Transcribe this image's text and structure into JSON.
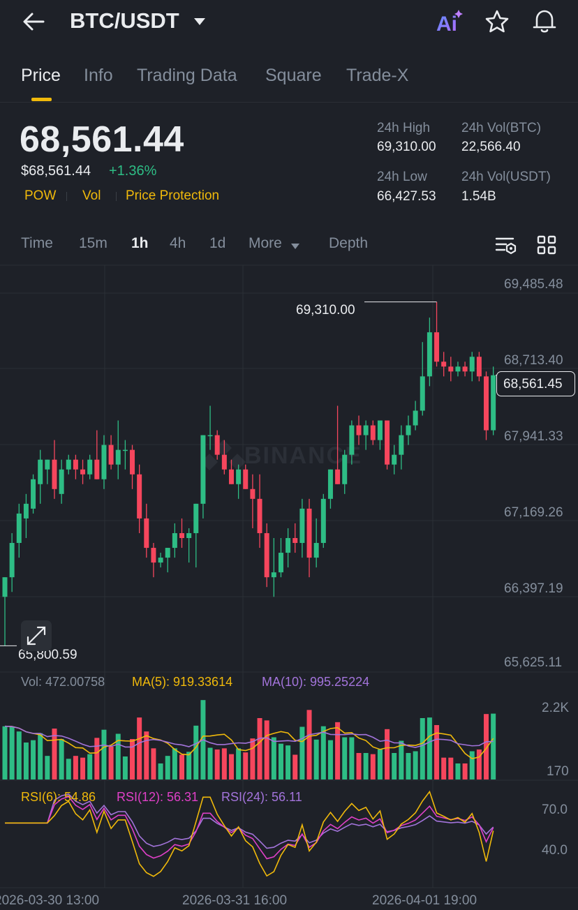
{
  "header": {
    "pair": "BTC/USDT",
    "icons": [
      "back-arrow-icon",
      "caret-down-icon",
      "ai-icon",
      "star-icon",
      "bell-icon"
    ]
  },
  "tabs": [
    "Price",
    "Info",
    "Trading Data",
    "Square",
    "Trade-X"
  ],
  "ticker": {
    "last_price": "68,561.44",
    "usd_price": "$68,561.44",
    "change": "+1.36%",
    "tags": [
      "POW",
      "Vol",
      "Price Protection"
    ],
    "high_label": "24h High",
    "high_value": "69,310.00",
    "low_label": "24h Low",
    "low_value": "66,427.53",
    "vol_btc_label": "24h Vol(BTC)",
    "vol_btc_value": "22,566.40",
    "vol_usdt_label": "24h Vol(USDT)",
    "vol_usdt_value": "1.54B"
  },
  "timeframes": [
    "Time",
    "15m",
    "1h",
    "4h",
    "1d",
    "More",
    "Depth"
  ],
  "active_timeframe": "1h",
  "chart": {
    "price_axis": [
      "69,485.48",
      "68,713.40",
      "67,941.33",
      "67,169.26",
      "66,397.19",
      "65,625.11"
    ],
    "high_marker": "69,310.00",
    "low_marker": "65,800.59",
    "current_price_tag": "68,561.45",
    "watermark": "BINANCE",
    "volume": {
      "vol": "Vol: 472.00758",
      "ma5": "MA(5): 919.33614",
      "ma10": "MA(10): 995.25224",
      "axis_top": "2.2K",
      "axis_bottom": "170"
    },
    "rsi": {
      "rsi6": "RSI(6): 54.86",
      "rsi12": "RSI(12): 56.31",
      "rsi24": "RSI(24): 56.11",
      "axis_top": "70.0",
      "axis_bottom": "40.0"
    },
    "time_axis": [
      "2026-03-30 13:00",
      "2026-03-31 16:00",
      "2026-04-01 19:00"
    ]
  },
  "colors": {
    "up": "#2ebd85",
    "down": "#f6465d",
    "accent": "#f0b90b",
    "ma5": "#f0b90b",
    "ma10": "#a374db",
    "rsi12": "#e040c8"
  },
  "chart_data": {
    "type": "candlestick",
    "ylim": [
      65625.11,
      69485.48
    ],
    "candles": [
      {
        "o": 66300,
        "h": 66500,
        "l": 65800.59,
        "c": 66500
      },
      {
        "o": 66500,
        "h": 66950,
        "l": 66350,
        "c": 66850
      },
      {
        "o": 66850,
        "h": 67250,
        "l": 66700,
        "c": 67150
      },
      {
        "o": 67100,
        "h": 67350,
        "l": 66900,
        "c": 67250
      },
      {
        "o": 67200,
        "h": 67550,
        "l": 67150,
        "c": 67500
      },
      {
        "o": 67450,
        "h": 67800,
        "l": 67250,
        "c": 67700
      },
      {
        "o": 67600,
        "h": 67700,
        "l": 67450,
        "c": 67700
      },
      {
        "o": 67700,
        "h": 67900,
        "l": 67300,
        "c": 67400
      },
      {
        "o": 67350,
        "h": 67700,
        "l": 67250,
        "c": 67600
      },
      {
        "o": 67600,
        "h": 67750,
        "l": 67550,
        "c": 67700
      },
      {
        "o": 67700,
        "h": 67750,
        "l": 67500,
        "c": 67600
      },
      {
        "o": 67600,
        "h": 67700,
        "l": 67450,
        "c": 67550
      },
      {
        "o": 67550,
        "h": 67750,
        "l": 67500,
        "c": 67700
      },
      {
        "o": 67700,
        "h": 68000,
        "l": 67500,
        "c": 67500
      },
      {
        "o": 67500,
        "h": 67950,
        "l": 67400,
        "c": 67850
      },
      {
        "o": 67850,
        "h": 67950,
        "l": 67600,
        "c": 67650
      },
      {
        "o": 67650,
        "h": 68100,
        "l": 67500,
        "c": 67800
      },
      {
        "o": 67800,
        "h": 67900,
        "l": 67600,
        "c": 67800
      },
      {
        "o": 67800,
        "h": 67850,
        "l": 67400,
        "c": 67550
      },
      {
        "o": 67550,
        "h": 67650,
        "l": 66950,
        "c": 67100
      },
      {
        "o": 67100,
        "h": 67250,
        "l": 66700,
        "c": 66800
      },
      {
        "o": 66800,
        "h": 66850,
        "l": 66500,
        "c": 66650
      },
      {
        "o": 66650,
        "h": 66750,
        "l": 66600,
        "c": 66700
      },
      {
        "o": 66700,
        "h": 66800,
        "l": 66550,
        "c": 66800
      },
      {
        "o": 66800,
        "h": 67050,
        "l": 66700,
        "c": 66950
      },
      {
        "o": 66950,
        "h": 67100,
        "l": 66800,
        "c": 66900
      },
      {
        "o": 66900,
        "h": 67000,
        "l": 66650,
        "c": 66950
      },
      {
        "o": 66950,
        "h": 67250,
        "l": 66600,
        "c": 67250
      },
      {
        "o": 67250,
        "h": 67950,
        "l": 67100,
        "c": 67950
      },
      {
        "o": 67950,
        "h": 68250,
        "l": 67800,
        "c": 67950
      },
      {
        "o": 67950,
        "h": 68000,
        "l": 67700,
        "c": 67750
      },
      {
        "o": 67750,
        "h": 67900,
        "l": 67550,
        "c": 67600
      },
      {
        "o": 67600,
        "h": 67700,
        "l": 67450,
        "c": 67450
      },
      {
        "o": 67450,
        "h": 67650,
        "l": 67300,
        "c": 67600
      },
      {
        "o": 67600,
        "h": 67650,
        "l": 67400,
        "c": 67400
      },
      {
        "o": 67400,
        "h": 67550,
        "l": 67000,
        "c": 67300
      },
      {
        "o": 67300,
        "h": 67550,
        "l": 66800,
        "c": 66950
      },
      {
        "o": 66950,
        "h": 67050,
        "l": 66400,
        "c": 66500
      },
      {
        "o": 66500,
        "h": 66900,
        "l": 66300,
        "c": 66550
      },
      {
        "o": 66550,
        "h": 66900,
        "l": 66500,
        "c": 66750
      },
      {
        "o": 66750,
        "h": 67000,
        "l": 66600,
        "c": 66900
      },
      {
        "o": 66900,
        "h": 67050,
        "l": 66750,
        "c": 66850
      },
      {
        "o": 66850,
        "h": 67300,
        "l": 66700,
        "c": 67200
      },
      {
        "o": 67200,
        "h": 67300,
        "l": 66500,
        "c": 66700
      },
      {
        "o": 66700,
        "h": 67100,
        "l": 66600,
        "c": 66850
      },
      {
        "o": 66850,
        "h": 67350,
        "l": 66800,
        "c": 67300
      },
      {
        "o": 67300,
        "h": 67600,
        "l": 67200,
        "c": 67600
      },
      {
        "o": 67600,
        "h": 68250,
        "l": 67450,
        "c": 67450
      },
      {
        "o": 67450,
        "h": 67800,
        "l": 67350,
        "c": 67750
      },
      {
        "o": 67750,
        "h": 68100,
        "l": 67650,
        "c": 68050
      },
      {
        "o": 68050,
        "h": 68150,
        "l": 67850,
        "c": 67950
      },
      {
        "o": 67950,
        "h": 68100,
        "l": 67800,
        "c": 68050
      },
      {
        "o": 68050,
        "h": 68100,
        "l": 67850,
        "c": 67900
      },
      {
        "o": 67900,
        "h": 68100,
        "l": 67800,
        "c": 68100
      },
      {
        "o": 68100,
        "h": 68100,
        "l": 67600,
        "c": 67650
      },
      {
        "o": 67650,
        "h": 67850,
        "l": 67550,
        "c": 67750
      },
      {
        "o": 67750,
        "h": 68050,
        "l": 67600,
        "c": 67950
      },
      {
        "o": 67950,
        "h": 68150,
        "l": 67850,
        "c": 68050
      },
      {
        "o": 68050,
        "h": 68300,
        "l": 68000,
        "c": 68200
      },
      {
        "o": 68200,
        "h": 68900,
        "l": 68150,
        "c": 68550
      },
      {
        "o": 68550,
        "h": 69150,
        "l": 68450,
        "c": 69000
      },
      {
        "o": 69000,
        "h": 69310.0,
        "l": 68650,
        "c": 68700
      },
      {
        "o": 68700,
        "h": 68800,
        "l": 68550,
        "c": 68650
      },
      {
        "o": 68650,
        "h": 68750,
        "l": 68500,
        "c": 68600
      },
      {
        "o": 68600,
        "h": 68700,
        "l": 68550,
        "c": 68650
      },
      {
        "o": 68650,
        "h": 68700,
        "l": 68550,
        "c": 68600
      },
      {
        "o": 68600,
        "h": 68800,
        "l": 68500,
        "c": 68750
      },
      {
        "o": 68750,
        "h": 68800,
        "l": 68500,
        "c": 68550
      },
      {
        "o": 68550,
        "h": 68600,
        "l": 67900,
        "c": 68000
      },
      {
        "o": 68000,
        "h": 68650,
        "l": 67950,
        "c": 68561.45
      }
    ]
  }
}
